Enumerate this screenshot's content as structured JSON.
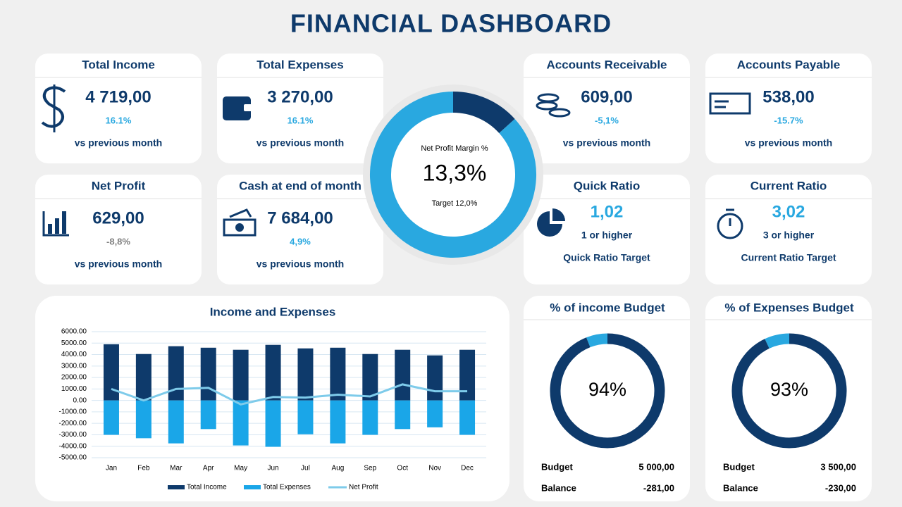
{
  "title": "FINANCIAL DASHBOARD",
  "kpis": [
    {
      "label": "Total Income",
      "value": "4 719,00",
      "change": "16.1%",
      "note": "vs previous month",
      "change_color": "#29a8e0"
    },
    {
      "label": "Total Expenses",
      "value": "3 270,00",
      "change": "16.1%",
      "note": "vs previous month",
      "change_color": "#29a8e0"
    },
    {
      "label": "Accounts Receivable",
      "value": "609,00",
      "change": "-5,1%",
      "note": "vs previous month",
      "change_color": "#29a8e0"
    },
    {
      "label": "Accounts Payable",
      "value": "538,00",
      "change": "-15.7%",
      "note": "vs previous month",
      "change_color": "#29a8e0"
    },
    {
      "label": "Net Profit",
      "value": "629,00",
      "change": "-8,8%",
      "note": "vs previous month",
      "change_color": "#808080"
    },
    {
      "label": "Cash at end of month",
      "value": "7 684,00",
      "change": "4,9%",
      "note": "vs previous month",
      "change_color": "#29a8e0"
    },
    {
      "label": "Quick Ratio",
      "value": "1,02",
      "change": "1 or higher",
      "note": "Quick Ratio Target",
      "value_color": "#29a8e0"
    },
    {
      "label": "Current Ratio",
      "value": "3,02",
      "change": "3 or higher",
      "note": "Current Ratio Target",
      "value_color": "#29a8e0"
    }
  ],
  "chart_data": [
    {
      "type": "donut",
      "title": "Net Profit Margin %",
      "values": [
        13.3
      ],
      "value_labels": [
        "13,3%"
      ],
      "subtitle": "Target 12,0%",
      "color": "#0e3a6b",
      "rest_color": "#29a8e0"
    },
    {
      "type": "combo",
      "title": "Income and  Expenses",
      "categories": [
        "Jan",
        "Feb",
        "Mar",
        "Apr",
        "May",
        "Jun",
        "Jul",
        "Aug",
        "Sep",
        "Oct",
        "Nov",
        "Dec"
      ],
      "series": [
        {
          "name": "Total Income",
          "kind": "bar",
          "color": "#0e3a6b",
          "values": [
            4900,
            4050,
            4730,
            4600,
            4420,
            4850,
            4540,
            4600,
            4050,
            4420,
            3930,
            4420
          ]
        },
        {
          "name": "Total Expenses",
          "kind": "bar",
          "color": "#1aa6e8",
          "values": [
            -3000,
            -3300,
            -3750,
            -2500,
            -3930,
            -4050,
            -2950,
            -3750,
            -3000,
            -2500,
            -2350,
            -3000
          ]
        },
        {
          "name": "Net Profit",
          "kind": "line",
          "color": "#7ecbea",
          "values": [
            1000,
            0,
            1000,
            1100,
            -350,
            300,
            250,
            500,
            350,
            1400,
            800,
            800
          ]
        }
      ],
      "ylim": [
        -5000,
        6000
      ],
      "yticks": [
        {
          "value": -5000,
          "label": "-5000.00"
        },
        {
          "value": -4000,
          "label": "-4000.00"
        },
        {
          "value": -3000,
          "label": "-3000.00"
        },
        {
          "value": -2000,
          "label": "-2000.00"
        },
        {
          "value": -1000,
          "label": "-1000.00"
        },
        {
          "value": 0,
          "label": "0.00"
        },
        {
          "value": 1000,
          "label": "1000.00"
        },
        {
          "value": 2000,
          "label": "2000.00"
        },
        {
          "value": 3000,
          "label": "3000.00"
        },
        {
          "value": 4000,
          "label": "4000.00"
        },
        {
          "value": 5000,
          "label": "5000.00"
        },
        {
          "value": 6000,
          "label": "6000.00"
        }
      ],
      "grid": true
    },
    {
      "type": "donut",
      "title": "% of income Budget",
      "values": [
        94
      ],
      "value_labels": [
        "94%"
      ],
      "color": "#0e3a6b",
      "rest_color": "#29a8e0",
      "rows": [
        [
          "Budget",
          "5 000,00"
        ],
        [
          "Balance",
          "-281,00"
        ]
      ]
    },
    {
      "type": "donut",
      "title": "% of Expenses Budget",
      "values": [
        93
      ],
      "value_labels": [
        "93%"
      ],
      "color": "#0e3a6b",
      "rest_color": "#29a8e0",
      "rows": [
        [
          "Budget",
          "3 500,00"
        ],
        [
          "Balance",
          "-230,00"
        ]
      ]
    }
  ]
}
